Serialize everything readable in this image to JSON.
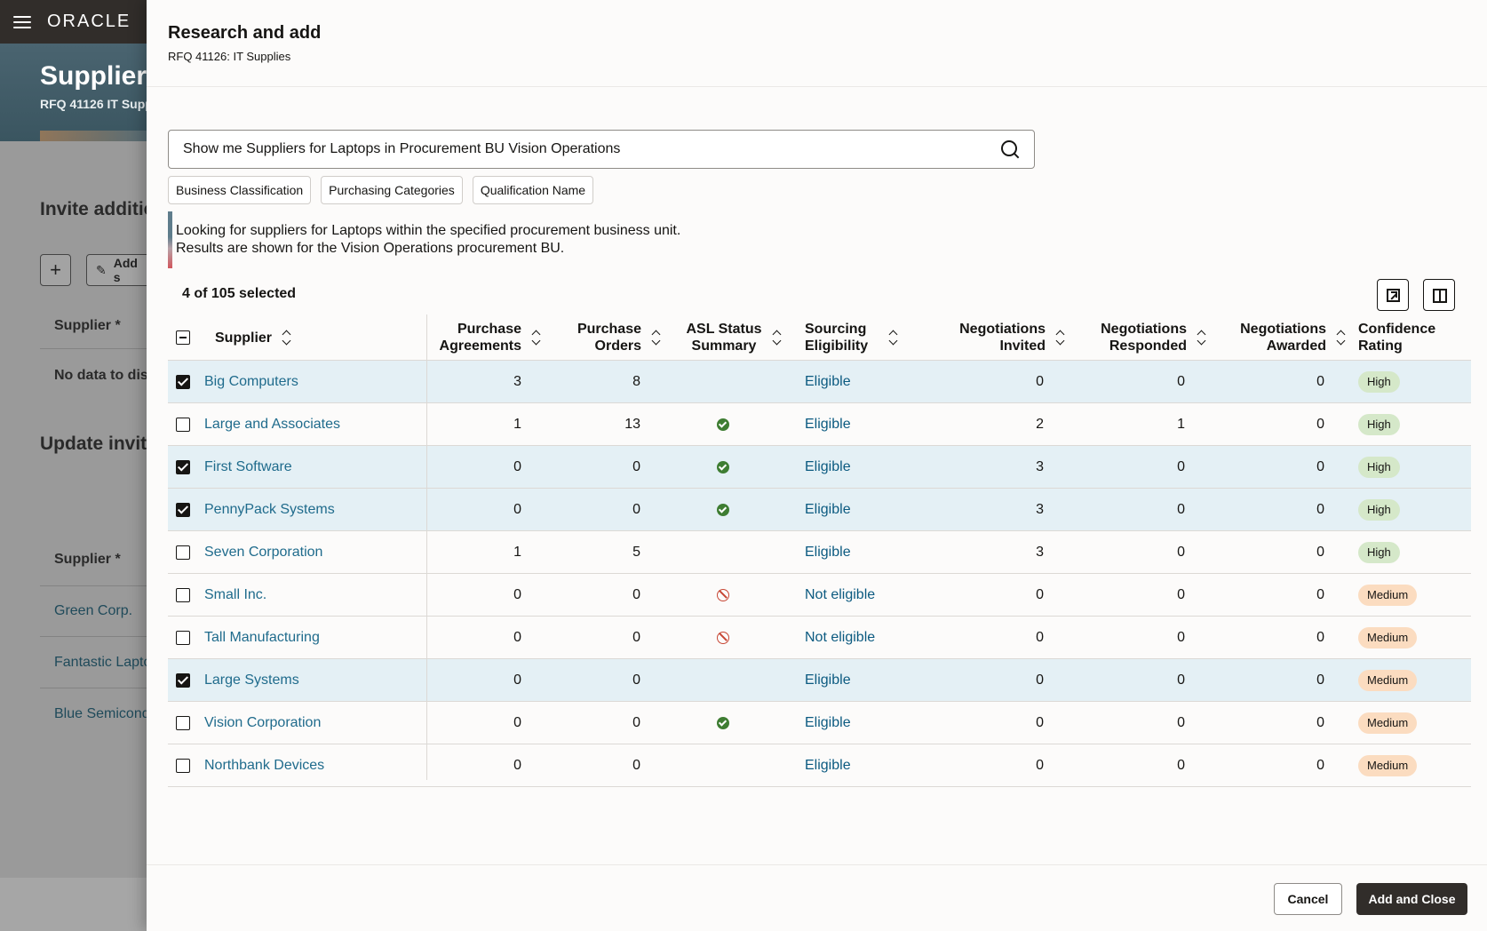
{
  "background": {
    "brand": "ORACLE",
    "page_title": "Suppliers",
    "page_sub": "RFQ 41126 IT Supp",
    "section_invite": "Invite additic",
    "add_btn": "Add s",
    "col_supplier": "Supplier *",
    "no_data": "No data to dis",
    "section_update": "Update invite",
    "col_supplier2": "Supplier *",
    "links": [
      "Green Corp.",
      "Fantastic Lapto",
      "Blue Semicond"
    ]
  },
  "drawer": {
    "title": "Research and add",
    "subtitle": "RFQ 41126: IT Supplies",
    "search_value": "Show me Suppliers for Laptops in Procurement BU Vision Operations",
    "chips": [
      "Business Classification",
      "Purchasing Categories",
      "Qualification Name"
    ],
    "info_lines": [
      "Looking for suppliers for Laptops within the specified procurement business unit.",
      "Results are shown for the Vision Operations procurement BU."
    ],
    "selected_count": "4 of 105 selected",
    "columns": {
      "supplier": "Supplier",
      "purchase_agreements": [
        "Purchase",
        "Agreements"
      ],
      "purchase_orders": [
        "Purchase",
        "Orders"
      ],
      "asl_status": [
        "ASL Status",
        "Summary"
      ],
      "sourcing": [
        "Sourcing",
        "Eligibility"
      ],
      "neg_invited": [
        "Negotiations",
        "Invited"
      ],
      "neg_responded": [
        "Negotiations",
        "Responded"
      ],
      "neg_awarded": [
        "Negotiations",
        "Awarded"
      ],
      "confidence": [
        "Confidence",
        "Rating"
      ]
    },
    "rows": [
      {
        "selected": true,
        "supplier": "Big Computers",
        "pa": "3",
        "po": "8",
        "asl": "none",
        "eligibility": "Eligible",
        "invited": "0",
        "responded": "0",
        "awarded": "0",
        "rating": "High"
      },
      {
        "selected": false,
        "supplier": "Large and Associates",
        "pa": "1",
        "po": "13",
        "asl": "ok",
        "eligibility": "Eligible",
        "invited": "2",
        "responded": "1",
        "awarded": "0",
        "rating": "High"
      },
      {
        "selected": true,
        "supplier": "First Software",
        "pa": "0",
        "po": "0",
        "asl": "ok",
        "eligibility": "Eligible",
        "invited": "3",
        "responded": "0",
        "awarded": "0",
        "rating": "High"
      },
      {
        "selected": true,
        "supplier": "PennyPack Systems",
        "pa": "0",
        "po": "0",
        "asl": "ok",
        "eligibility": "Eligible",
        "invited": "3",
        "responded": "0",
        "awarded": "0",
        "rating": "High"
      },
      {
        "selected": false,
        "supplier": "Seven Corporation",
        "pa": "1",
        "po": "5",
        "asl": "none",
        "eligibility": "Eligible",
        "invited": "3",
        "responded": "0",
        "awarded": "0",
        "rating": "High"
      },
      {
        "selected": false,
        "supplier": "Small Inc.",
        "pa": "0",
        "po": "0",
        "asl": "blocked",
        "eligibility": "Not eligible",
        "invited": "0",
        "responded": "0",
        "awarded": "0",
        "rating": "Medium"
      },
      {
        "selected": false,
        "supplier": "Tall Manufacturing",
        "pa": "0",
        "po": "0",
        "asl": "blocked",
        "eligibility": "Not eligible",
        "invited": "0",
        "responded": "0",
        "awarded": "0",
        "rating": "Medium"
      },
      {
        "selected": true,
        "supplier": "Large Systems",
        "pa": "0",
        "po": "0",
        "asl": "none",
        "eligibility": "Eligible",
        "invited": "0",
        "responded": "0",
        "awarded": "0",
        "rating": "Medium"
      },
      {
        "selected": false,
        "supplier": "Vision Corporation",
        "pa": "0",
        "po": "0",
        "asl": "ok",
        "eligibility": "Eligible",
        "invited": "0",
        "responded": "0",
        "awarded": "0",
        "rating": "Medium"
      },
      {
        "selected": false,
        "supplier": "Northbank Devices",
        "pa": "0",
        "po": "0",
        "asl": "none",
        "eligibility": "Eligible",
        "invited": "0",
        "responded": "0",
        "awarded": "0",
        "rating": "Medium"
      }
    ],
    "cancel_label": "Cancel",
    "primary_label": "Add and Close"
  },
  "icons": {
    "menu": "hamburger-icon",
    "search": "search-icon",
    "detach": "detach-icon",
    "columns": "columns-icon",
    "sort": "sort-icon",
    "asl_ok": "check-circle-icon",
    "asl_blocked": "blocked-icon"
  },
  "colors": {
    "topbar": "#312d2a",
    "selected_row": "#e4f0f5",
    "link": "#1f6b8c",
    "badge_high": "#d5e8c9",
    "badge_medium": "#fbdcc0",
    "ok": "#3e7d32",
    "blocked": "#c74634"
  }
}
